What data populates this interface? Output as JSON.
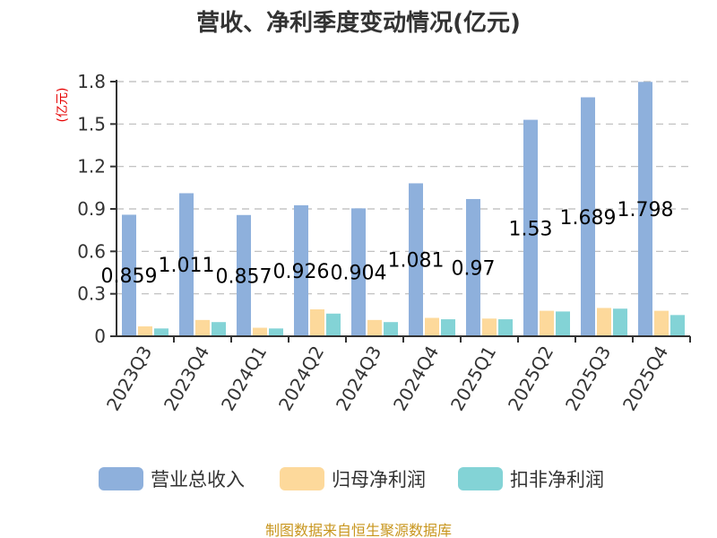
{
  "chart_data": {
    "type": "bar",
    "title": "营收、净利季度变动情况(亿元)",
    "ylabel": "(亿元)",
    "xlabel": "",
    "categories": [
      "2023Q3",
      "2023Q4",
      "2024Q1",
      "2024Q2",
      "2024Q3",
      "2024Q4",
      "2025Q1",
      "2025Q2",
      "2025Q3",
      "2025Q4"
    ],
    "series": [
      {
        "name": "营业总收入",
        "color": "#8eb0dc",
        "values": [
          0.859,
          1.011,
          0.857,
          0.926,
          0.904,
          1.081,
          0.97,
          1.53,
          1.689,
          1.798
        ],
        "labels": [
          "0.859",
          "1.011",
          "0.857",
          "0.926",
          "0.904",
          "1.081",
          "0.97",
          "1.53",
          "1.689",
          "1.798"
        ]
      },
      {
        "name": "归母净利润",
        "color": "#fdd99b",
        "values": [
          0.07,
          0.115,
          0.06,
          0.19,
          0.115,
          0.13,
          0.125,
          0.18,
          0.2,
          0.18
        ]
      },
      {
        "name": "扣非净利润",
        "color": "#83d3d6",
        "values": [
          0.055,
          0.1,
          0.055,
          0.16,
          0.1,
          0.12,
          0.12,
          0.175,
          0.195,
          0.15
        ]
      }
    ],
    "ylim": [
      0,
      1.8
    ],
    "yticks": [
      "0",
      "0.3",
      "0.6",
      "0.9",
      "1.2",
      "1.5",
      "1.8"
    ],
    "grid": true,
    "legend_position": "bottom",
    "source": "制图数据来自恒生聚源数据库",
    "ylabel_color": "#e60000",
    "source_color": "#c8961e"
  }
}
